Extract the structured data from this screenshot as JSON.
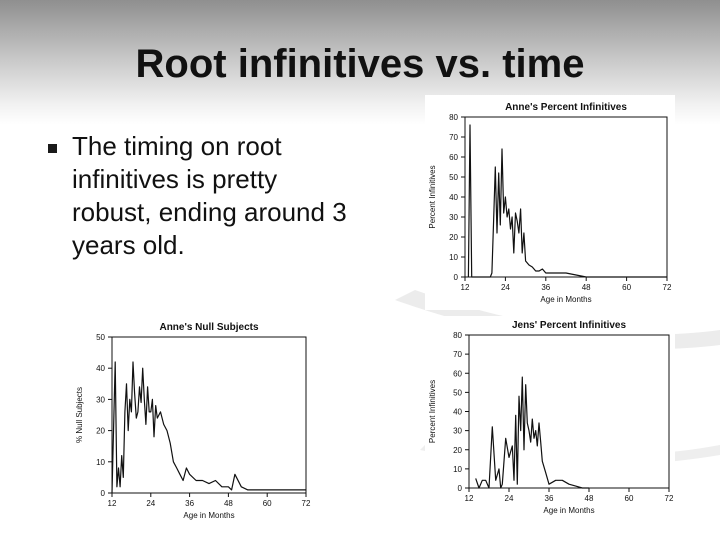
{
  "slide": {
    "title": "Root infinitives vs. time",
    "bullets": [
      "The timing on root infinitives is pretty robust, ending around 3 years old."
    ]
  },
  "colors": {
    "text": "#111111",
    "plot_line": "#111111",
    "panel": "#ffffff"
  },
  "chart_data": [
    {
      "type": "line",
      "title": "Anne's Percent Infinitives",
      "xlabel": "Age in Months",
      "ylabel": "Percent Infinitives",
      "xlim": [
        12,
        72
      ],
      "ylim": [
        0,
        80
      ],
      "xticks": [
        12,
        24,
        36,
        48,
        60,
        72
      ],
      "yticks": [
        0,
        10,
        20,
        30,
        40,
        50,
        60,
        70,
        80
      ],
      "grid": false,
      "series": [
        {
          "x": [
            13,
            13.5,
            14,
            14.5,
            15,
            15.5,
            16,
            17,
            18,
            19,
            19.5,
            20,
            20.5,
            21,
            21.5,
            22,
            22.5,
            23,
            23.5,
            24,
            24.5,
            25,
            25.5,
            26,
            26.5,
            27,
            27.5,
            28,
            28.5,
            29,
            29.5,
            30,
            31,
            32,
            33,
            34,
            35,
            36,
            38,
            40,
            42,
            45,
            48,
            50,
            52,
            56,
            60,
            66,
            72
          ],
          "y": [
            0,
            76,
            0,
            0,
            0,
            0,
            0,
            0,
            0,
            0,
            0,
            2,
            28,
            55,
            22,
            52,
            26,
            64,
            32,
            40,
            30,
            34,
            24,
            30,
            12,
            32,
            28,
            22,
            34,
            12,
            22,
            8,
            6,
            5,
            3,
            3,
            4,
            2,
            2,
            2,
            2,
            1,
            0,
            0,
            0,
            0,
            0,
            0,
            0
          ]
        }
      ]
    },
    {
      "type": "line",
      "title": "Anne's Null Subjects",
      "xlabel": "Age in Months",
      "ylabel": "% Null Subjects",
      "xlim": [
        12,
        72
      ],
      "ylim": [
        0,
        50
      ],
      "xticks": [
        12,
        24,
        36,
        48,
        60,
        72
      ],
      "yticks": [
        0,
        10,
        20,
        30,
        40,
        50
      ],
      "grid": false,
      "series": [
        {
          "x": [
            12,
            13,
            13.5,
            14,
            14.5,
            15,
            15.5,
            16,
            16.5,
            17,
            17.5,
            18,
            18.5,
            19,
            19.5,
            20,
            20.5,
            21,
            21.5,
            22,
            22.5,
            23,
            23.5,
            24,
            24.5,
            25,
            25.5,
            26,
            27,
            28,
            29,
            30,
            31,
            32,
            33,
            34,
            35,
            36,
            38,
            40,
            42,
            44,
            46,
            48,
            49,
            50,
            52,
            54,
            56,
            60,
            66,
            72
          ],
          "y": [
            0,
            42,
            2,
            8,
            2,
            12,
            5,
            26,
            35,
            20,
            30,
            26,
            42,
            32,
            24,
            26,
            34,
            29,
            40,
            30,
            22,
            34,
            26,
            26,
            30,
            18,
            28,
            24,
            26,
            22,
            20,
            16,
            10,
            8,
            6,
            4,
            8,
            6,
            4,
            4,
            3,
            4,
            2,
            2,
            1,
            6,
            2,
            1,
            1,
            1,
            1,
            1
          ]
        }
      ]
    },
    {
      "type": "line",
      "title": "Jens' Percent Infinitives",
      "xlabel": "Age in Months",
      "ylabel": "Percent Infinitives",
      "xlim": [
        12,
        72
      ],
      "ylim": [
        0,
        80
      ],
      "xticks": [
        12,
        24,
        36,
        48,
        60,
        72
      ],
      "yticks": [
        0,
        10,
        20,
        30,
        40,
        50,
        60,
        70,
        80
      ],
      "grid": false,
      "series": [
        {
          "x": [
            14,
            15,
            16,
            17,
            18,
            19,
            20,
            21,
            21.5,
            22,
            23,
            24,
            25,
            25.5,
            26,
            26.5,
            27,
            27.5,
            28,
            28.5,
            29,
            29.5,
            30,
            30.5,
            31,
            31.5,
            32,
            32.5,
            33,
            33.5,
            34,
            35,
            36,
            38,
            40,
            42,
            44,
            46,
            48
          ],
          "y": [
            5,
            0,
            4,
            4,
            0,
            32,
            4,
            10,
            0,
            2,
            26,
            16,
            22,
            4,
            38,
            2,
            48,
            30,
            58,
            20,
            54,
            34,
            30,
            24,
            36,
            26,
            30,
            22,
            34,
            24,
            14,
            8,
            2,
            4,
            4,
            2,
            1,
            0,
            0
          ]
        }
      ]
    }
  ]
}
